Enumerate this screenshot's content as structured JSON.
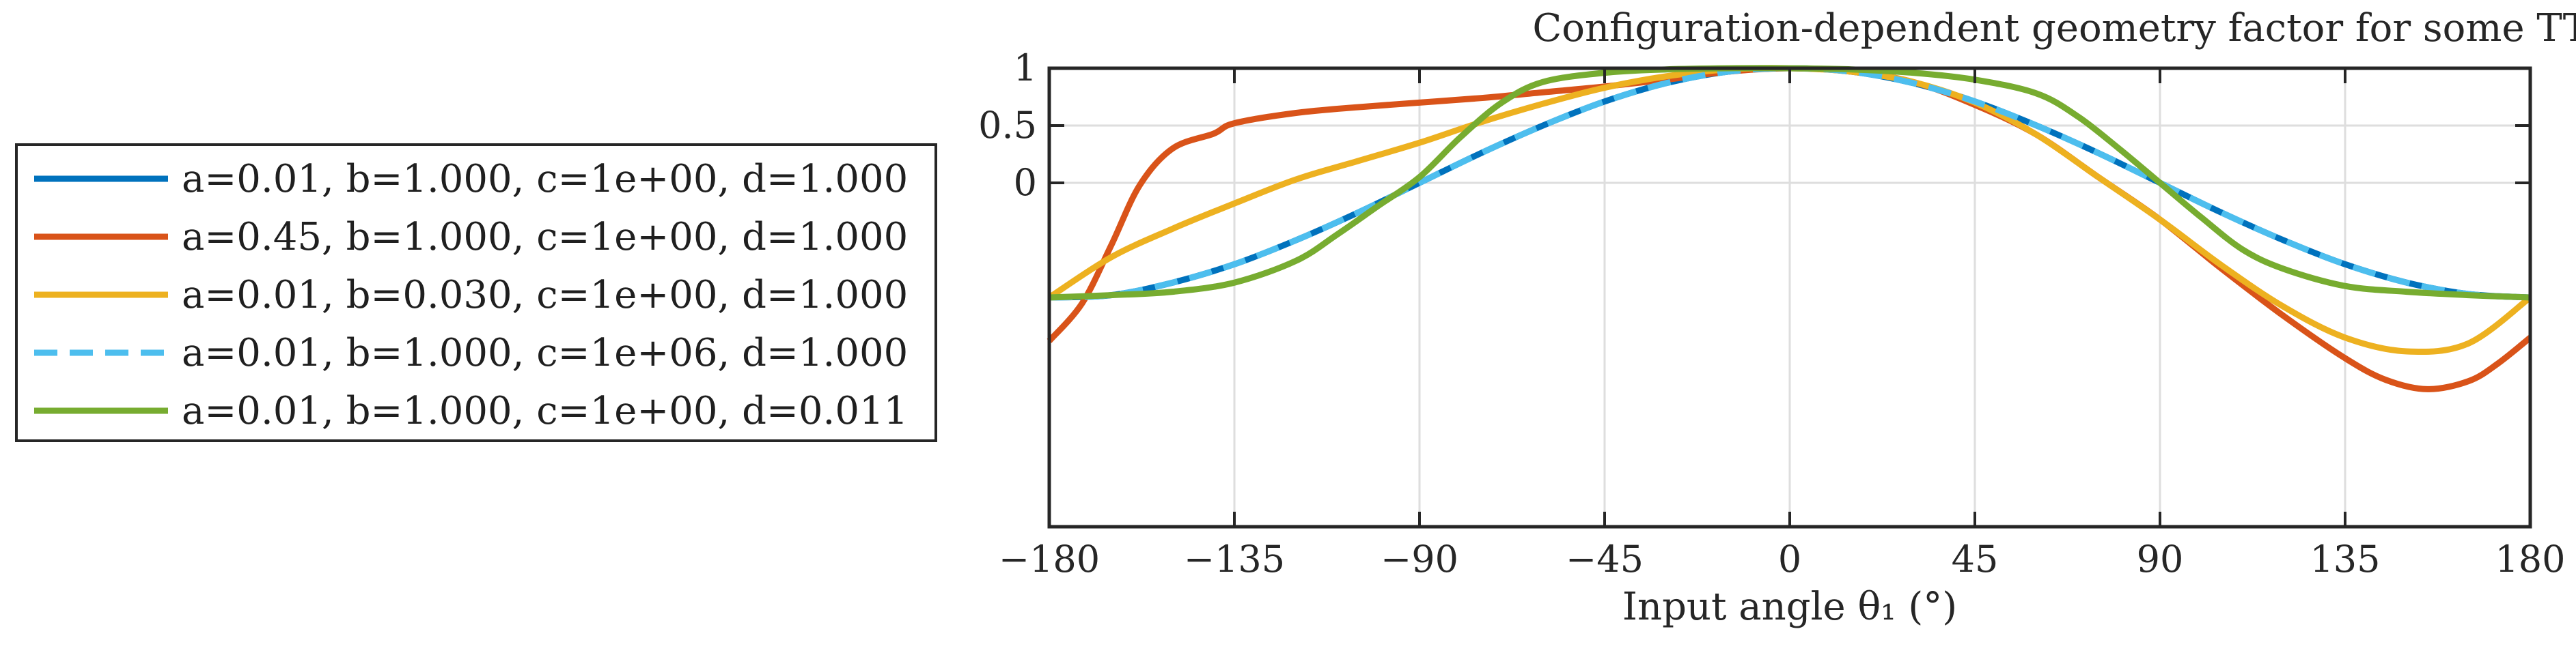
{
  "chart_data": {
    "type": "line",
    "title": "Configuration-dependent geometry factor for some TTM designs",
    "xlabel": "Input angle θ₁ (°)",
    "ylabel": "",
    "xlim": [
      -180,
      180
    ],
    "ylim": [
      -3,
      1
    ],
    "xticks": [
      -180,
      -135,
      -90,
      -45,
      0,
      45,
      90,
      135,
      180
    ],
    "xtick_labels": [
      "−180",
      "−135",
      "−90",
      "−45",
      "0",
      "45",
      "90",
      "135",
      "180"
    ],
    "yticks": [
      1,
      0.5,
      0
    ],
    "ytick_labels": [
      "1",
      "0.5",
      "0"
    ],
    "grid": true,
    "legend_position": "outside-left",
    "series": [
      {
        "name": "a=0.01, b=1.000, c=1e+00, d=1.000",
        "color": "#0072BD",
        "dash": "solid",
        "x": [
          -180,
          -165,
          -150,
          -135,
          -120,
          -105,
          -90,
          -75,
          -60,
          -45,
          -30,
          -15,
          0,
          15,
          30,
          45,
          60,
          75,
          90,
          105,
          120,
          135,
          150,
          165,
          180
        ],
        "y": [
          -1.0,
          -0.98,
          -0.87,
          -0.71,
          -0.5,
          -0.26,
          0.0,
          0.26,
          0.5,
          0.71,
          0.87,
          0.97,
          1.0,
          0.97,
          0.87,
          0.71,
          0.5,
          0.26,
          0.0,
          -0.26,
          -0.5,
          -0.71,
          -0.87,
          -0.97,
          -1.0
        ]
      },
      {
        "name": "a=0.45, b=1.000, c=1e+00, d=1.000",
        "color": "#D95319",
        "dash": "solid",
        "x": [
          -180,
          -172,
          -165,
          -158,
          -150,
          -140,
          -135,
          -120,
          -105,
          -90,
          -75,
          -60,
          -45,
          -30,
          -15,
          0,
          15,
          30,
          45,
          60,
          75,
          90,
          105,
          120,
          135,
          145,
          155,
          165,
          172,
          180
        ],
        "y": [
          -1.38,
          -1.05,
          -0.55,
          -0.02,
          0.3,
          0.43,
          0.52,
          0.61,
          0.66,
          0.7,
          0.74,
          0.79,
          0.84,
          0.9,
          0.97,
          1.0,
          0.97,
          0.88,
          0.68,
          0.42,
          0.05,
          -0.32,
          -0.75,
          -1.16,
          -1.53,
          -1.72,
          -1.8,
          -1.73,
          -1.58,
          -1.35
        ]
      },
      {
        "name": "a=0.01, b=0.030, c=1e+00, d=1.000",
        "color": "#EDB120",
        "dash": "solid",
        "x": [
          -180,
          -165,
          -150,
          -135,
          -120,
          -105,
          -90,
          -75,
          -60,
          -45,
          -30,
          -15,
          0,
          15,
          30,
          45,
          60,
          75,
          90,
          105,
          120,
          135,
          150,
          165,
          180
        ],
        "y": [
          -1.0,
          -0.65,
          -0.4,
          -0.18,
          0.03,
          0.19,
          0.35,
          0.53,
          0.69,
          0.83,
          0.93,
          0.99,
          1.0,
          0.97,
          0.88,
          0.7,
          0.42,
          0.05,
          -0.32,
          -0.72,
          -1.08,
          -1.35,
          -1.47,
          -1.4,
          -1.0
        ]
      },
      {
        "name": "a=0.01, b=1.000, c=1e+06, d=1.000",
        "color": "#4DBEEE",
        "dash": "dashed",
        "x": [
          -180,
          -165,
          -150,
          -135,
          -120,
          -105,
          -90,
          -75,
          -60,
          -45,
          -30,
          -15,
          0,
          15,
          30,
          45,
          60,
          75,
          90,
          105,
          120,
          135,
          150,
          165,
          180
        ],
        "y": [
          -1.0,
          -0.98,
          -0.87,
          -0.71,
          -0.5,
          -0.26,
          0.0,
          0.26,
          0.5,
          0.71,
          0.87,
          0.97,
          1.0,
          0.97,
          0.87,
          0.71,
          0.5,
          0.26,
          0.0,
          -0.26,
          -0.5,
          -0.71,
          -0.87,
          -0.97,
          -1.0
        ]
      },
      {
        "name": "a=0.01, b=1.000, c=1e+00, d=0.011",
        "color": "#77AC30",
        "dash": "solid",
        "x": [
          -180,
          -165,
          -150,
          -135,
          -120,
          -110,
          -100,
          -90,
          -80,
          -70,
          -60,
          -45,
          -30,
          -15,
          0,
          15,
          30,
          45,
          60,
          70,
          80,
          90,
          100,
          110,
          120,
          135,
          150,
          165,
          180
        ],
        "y": [
          -1.0,
          -0.98,
          -0.95,
          -0.87,
          -0.68,
          -0.45,
          -0.2,
          0.05,
          0.4,
          0.7,
          0.88,
          0.96,
          0.99,
          1.0,
          1.0,
          0.99,
          0.96,
          0.9,
          0.78,
          0.58,
          0.3,
          0.0,
          -0.3,
          -0.58,
          -0.75,
          -0.9,
          -0.95,
          -0.98,
          -1.0
        ]
      }
    ]
  }
}
